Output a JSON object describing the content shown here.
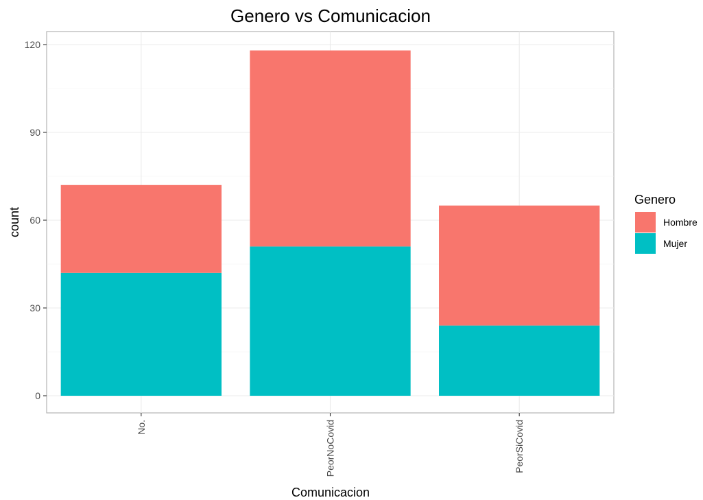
{
  "chart_data": {
    "type": "bar",
    "stacked": true,
    "title": "Genero vs Comunicacion",
    "xlabel": "Comunicacion",
    "ylabel": "count",
    "categories": [
      "No.",
      "PeorNoCovid",
      "PeorSiCovid"
    ],
    "series": [
      {
        "name": "Hombre",
        "color": "#F8766D",
        "values": [
          30,
          67,
          41
        ]
      },
      {
        "name": "Mujer",
        "color": "#00BFC4",
        "values": [
          42,
          51,
          24
        ]
      }
    ],
    "ylim": [
      0,
      125
    ],
    "yticks": [
      0,
      30,
      60,
      90,
      120
    ],
    "grid": true,
    "legend": {
      "title": "Genero",
      "position": "right"
    }
  }
}
